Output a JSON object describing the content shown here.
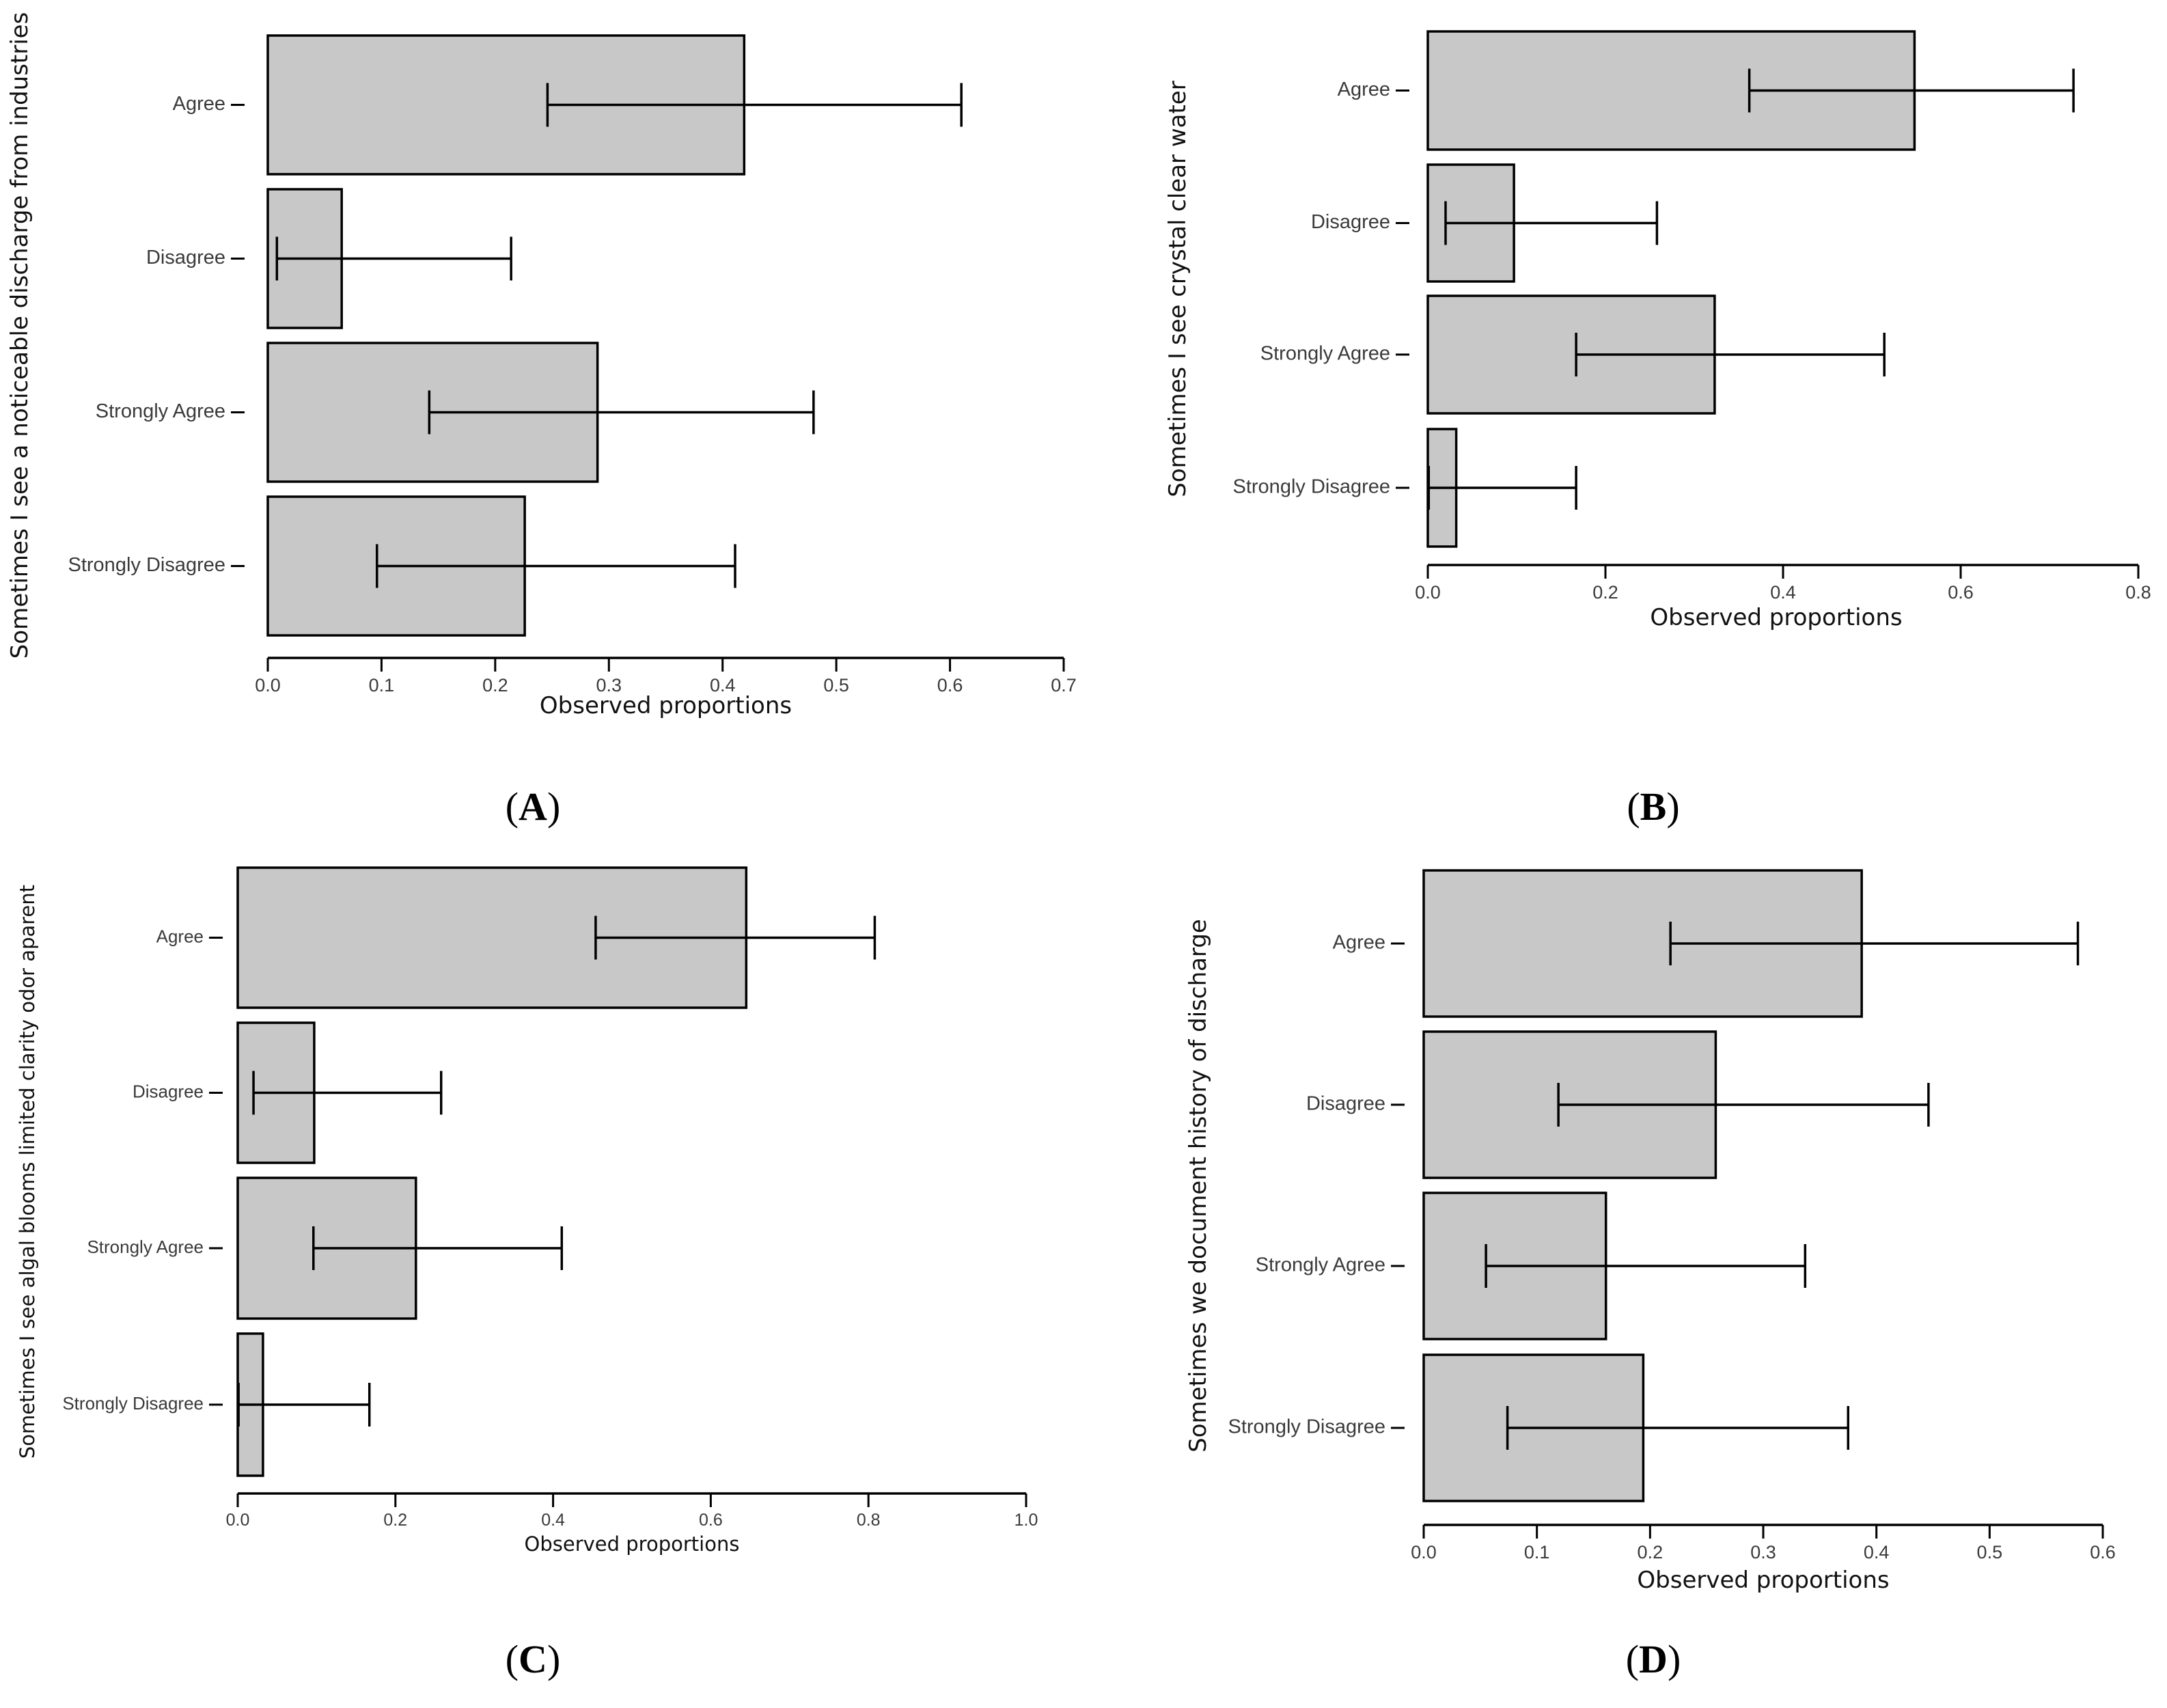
{
  "bar_fill": "#c8c8c8",
  "chart_data": [
    {
      "type": "bar",
      "orientation": "horizontal",
      "panel_label": "A",
      "ylabel": "Sometimes I see a noticeable discharge from industries",
      "xlabel": "Observed proportions",
      "xlim": [
        0,
        0.7
      ],
      "xticks": [
        0.0,
        0.1,
        0.2,
        0.3,
        0.4,
        0.5,
        0.6,
        0.7
      ],
      "xtick_labels": [
        "0.0",
        "0.1",
        "0.2",
        "0.3",
        "0.4",
        "0.5",
        "0.6",
        "0.7"
      ],
      "categories": [
        "Agree",
        "Disagree",
        "Strongly Agree",
        "Strongly Disagree"
      ],
      "values": [
        0.419,
        0.065,
        0.29,
        0.226
      ],
      "ci_low": [
        0.246,
        0.008,
        0.142,
        0.096
      ],
      "ci_high": [
        0.61,
        0.214,
        0.48,
        0.411
      ]
    },
    {
      "type": "bar",
      "orientation": "horizontal",
      "panel_label": "B",
      "ylabel": "Sometimes I see crystal clear water",
      "xlabel": "Observed proportions",
      "xlim": [
        0,
        0.8
      ],
      "xticks": [
        0.0,
        0.2,
        0.4,
        0.6,
        0.8
      ],
      "xtick_labels": [
        "0.0",
        "0.2",
        "0.4",
        "0.6",
        "0.8"
      ],
      "categories": [
        "Agree",
        "Disagree",
        "Strongly Agree",
        "Strongly Disagree"
      ],
      "values": [
        0.548,
        0.097,
        0.323,
        0.032
      ],
      "ci_low": [
        0.362,
        0.02,
        0.167,
        0.001
      ],
      "ci_high": [
        0.727,
        0.258,
        0.514,
        0.167
      ]
    },
    {
      "type": "bar",
      "orientation": "horizontal",
      "panel_label": "C",
      "ylabel": "Sometimes I see algal blooms limited clarity odor aparent",
      "xlabel": "Observed proportions",
      "xlim": [
        0,
        1.0
      ],
      "xticks": [
        0.0,
        0.2,
        0.4,
        0.6,
        0.8,
        1.0
      ],
      "xtick_labels": [
        "0.0",
        "0.2",
        "0.4",
        "0.6",
        "0.8",
        "1.0"
      ],
      "categories": [
        "Agree",
        "Disagree",
        "Strongly Agree",
        "Strongly Disagree"
      ],
      "values": [
        0.645,
        0.097,
        0.226,
        0.032
      ],
      "ci_low": [
        0.454,
        0.02,
        0.096,
        0.001
      ],
      "ci_high": [
        0.808,
        0.258,
        0.411,
        0.167
      ]
    },
    {
      "type": "bar",
      "orientation": "horizontal",
      "panel_label": "D",
      "ylabel": "Sometimes we document history of discharge",
      "xlabel": "Observed proportions",
      "xlim": [
        0,
        0.6
      ],
      "xticks": [
        0.0,
        0.1,
        0.2,
        0.3,
        0.4,
        0.5,
        0.6
      ],
      "xtick_labels": [
        "0.0",
        "0.1",
        "0.2",
        "0.3",
        "0.4",
        "0.5",
        "0.6"
      ],
      "categories": [
        "Agree",
        "Disagree",
        "Strongly Agree",
        "Strongly Disagree"
      ],
      "values": [
        0.387,
        0.258,
        0.161,
        0.194
      ],
      "ci_low": [
        0.218,
        0.119,
        0.055,
        0.074
      ],
      "ci_high": [
        0.578,
        0.446,
        0.337,
        0.375
      ]
    }
  ]
}
